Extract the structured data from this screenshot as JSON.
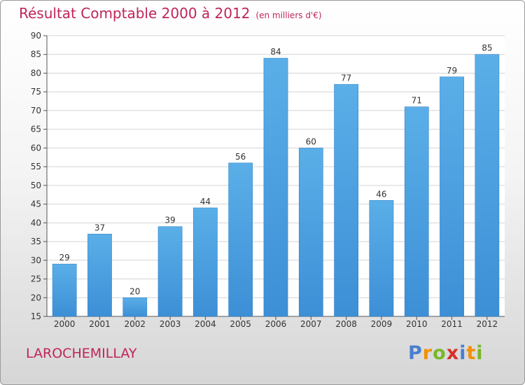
{
  "title": "Résultat Comptable 2000 à 2012",
  "subtitle": "(en milliers d'€)",
  "commune": "LAROCHEMILLAY",
  "logo": {
    "letters": [
      "P",
      "r",
      "o",
      "x",
      "i",
      "t",
      "i"
    ],
    "colors": [
      "#4a7fcf",
      "#f29100",
      "#78b829",
      "#d6312a",
      "#4a7fcf",
      "#f29100",
      "#78b829"
    ]
  },
  "colors": {
    "bar": "#3d8fd6",
    "bar_light": "#5aafe8",
    "title": "#c0245a"
  },
  "chart_data": {
    "type": "bar",
    "title": "Résultat Comptable 2000 à 2012",
    "subtitle": "(en milliers d'€)",
    "categories": [
      "2000",
      "2001",
      "2002",
      "2003",
      "2004",
      "2005",
      "2006",
      "2007",
      "2008",
      "2009",
      "2010",
      "2011",
      "2012"
    ],
    "values": [
      29,
      37,
      20,
      39,
      44,
      56,
      84,
      60,
      77,
      46,
      71,
      79,
      85
    ],
    "ylim": [
      15,
      90
    ],
    "yticks": [
      15,
      20,
      25,
      30,
      35,
      40,
      45,
      50,
      55,
      60,
      65,
      70,
      75,
      80,
      85,
      90
    ],
    "grid": true,
    "xlabel": "",
    "ylabel": ""
  }
}
